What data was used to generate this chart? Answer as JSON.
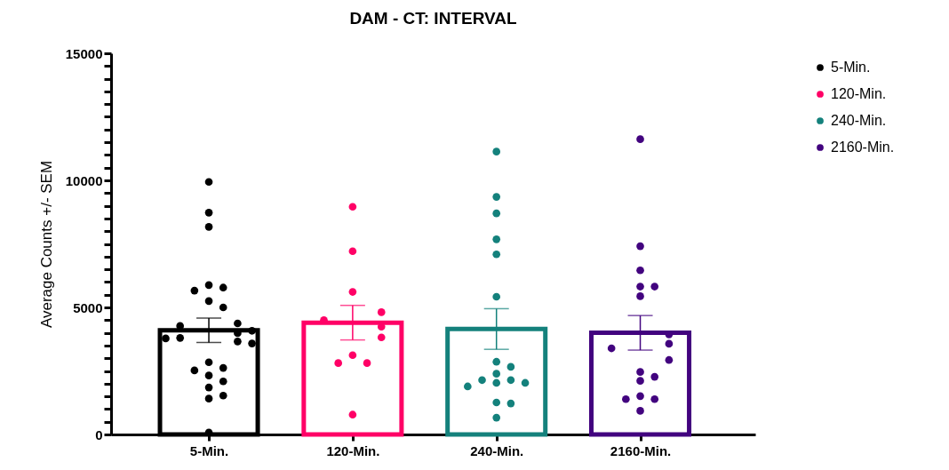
{
  "chart_data": {
    "type": "bar",
    "title": "DAM - CT: INTERVAL",
    "ylabel": "Average Counts +/- SEM",
    "categories": [
      "5-Min.",
      "120-Min.",
      "240-Min.",
      "2160-Min."
    ],
    "ylim": [
      0,
      15000
    ],
    "yticks": [
      0,
      {
        "value": 500,
        "label": null
      },
      {
        "value": 1000,
        "label": null
      },
      {
        "value": 1500,
        "label": null
      },
      {
        "value": 2000,
        "label": null
      },
      {
        "value": 2500,
        "label": null
      },
      {
        "value": 3000,
        "label": null
      },
      {
        "value": 3500,
        "label": null
      },
      {
        "value": 4000,
        "label": null
      },
      {
        "value": 4500,
        "label": null
      },
      5000,
      {
        "value": 5500,
        "label": null
      },
      {
        "value": 6000,
        "label": null
      },
      {
        "value": 6500,
        "label": null
      },
      {
        "value": 7000,
        "label": null
      },
      {
        "value": 7500,
        "label": null
      },
      {
        "value": 8000,
        "label": null
      },
      {
        "value": 8500,
        "label": null
      },
      {
        "value": 9000,
        "label": null
      },
      {
        "value": 9500,
        "label": null
      },
      10000,
      {
        "value": 10500,
        "label": null
      },
      {
        "value": 11000,
        "label": null
      },
      {
        "value": 11500,
        "label": null
      },
      {
        "value": 12000,
        "label": null
      },
      {
        "value": 12500,
        "label": null
      },
      {
        "value": 13000,
        "label": null
      },
      {
        "value": 13500,
        "label": null
      },
      {
        "value": 14000,
        "label": null
      },
      {
        "value": 14500,
        "label": null
      },
      15000
    ],
    "grid": false,
    "legend": "top right",
    "marker": "circle",
    "series": [
      {
        "values": [
          4100,
          4400,
          4150,
          4000
        ],
        "colors": [
          "#000000",
          "#ff0066",
          "#14817c",
          "#42037f"
        ],
        "errors": [
          480,
          680,
          800,
          680
        ]
      },
      {
        "type": "scatter",
        "name": "5-Min.",
        "color": "#000000",
        "x": [
          "5-Min.",
          "5-Min.",
          "5-Min.",
          "5-Min.",
          "5-Min.",
          "5-Min.",
          "5-Min.",
          "5-Min.",
          "5-Min.",
          "5-Min.",
          "5-Min.",
          "5-Min.",
          "5-Min.",
          "5-Min.",
          "5-Min.",
          "5-Min.",
          "5-Min.",
          "5-Min.",
          "5-Min.",
          "5-Min.",
          "5-Min.",
          "5-Min.",
          "5-Min.",
          "5-Min.",
          "5-Min."
        ],
        "values": [
          9940,
          8730,
          8170,
          5880,
          5780,
          5660,
          5250,
          5000,
          4370,
          4270,
          4080,
          3990,
          3800,
          3780,
          3660,
          3580,
          2840,
          2620,
          2520,
          2320,
          2090,
          1850,
          1530,
          1410,
          80
        ]
      },
      {
        "type": "scatter",
        "name": "120-Min.",
        "color": "#ff0066",
        "x": [
          "120-Min.",
          "120-Min.",
          "120-Min.",
          "120-Min.",
          "120-Min.",
          "120-Min.",
          "120-Min.",
          "120-Min.",
          "120-Min.",
          "120-Min.",
          "120-Min."
        ],
        "values": [
          8960,
          7210,
          5610,
          4810,
          4500,
          4240,
          3820,
          3120,
          2810,
          2810,
          780
        ]
      },
      {
        "type": "scatter",
        "name": "240-Min.",
        "color": "#14817c",
        "x": [
          "240-Min.",
          "240-Min.",
          "240-Min.",
          "240-Min.",
          "240-Min.",
          "240-Min.",
          "240-Min.",
          "240-Min.",
          "240-Min.",
          "240-Min.",
          "240-Min.",
          "240-Min.",
          "240-Min.",
          "240-Min.",
          "240-Min.",
          "240-Min.",
          "240-Min."
        ],
        "values": [
          11130,
          9350,
          8700,
          7680,
          7090,
          5420,
          2860,
          2660,
          2390,
          2140,
          2140,
          2030,
          2030,
          1890,
          1260,
          1220,
          660
        ]
      },
      {
        "type": "scatter",
        "name": "2160-Min.",
        "color": "#42037f",
        "x": [
          "2160-Min.",
          "2160-Min.",
          "2160-Min.",
          "2160-Min.",
          "2160-Min.",
          "2160-Min.",
          "2160-Min.",
          "2160-Min.",
          "2160-Min.",
          "2160-Min.",
          "2160-Min.",
          "2160-Min.",
          "2160-Min.",
          "2160-Min.",
          "2160-Min.",
          "2160-Min.",
          "2160-Min."
        ],
        "values": [
          11620,
          7410,
          6460,
          5820,
          5820,
          5440,
          3940,
          3570,
          3390,
          2930,
          2460,
          2270,
          2110,
          1510,
          1390,
          1390,
          930
        ]
      }
    ]
  }
}
